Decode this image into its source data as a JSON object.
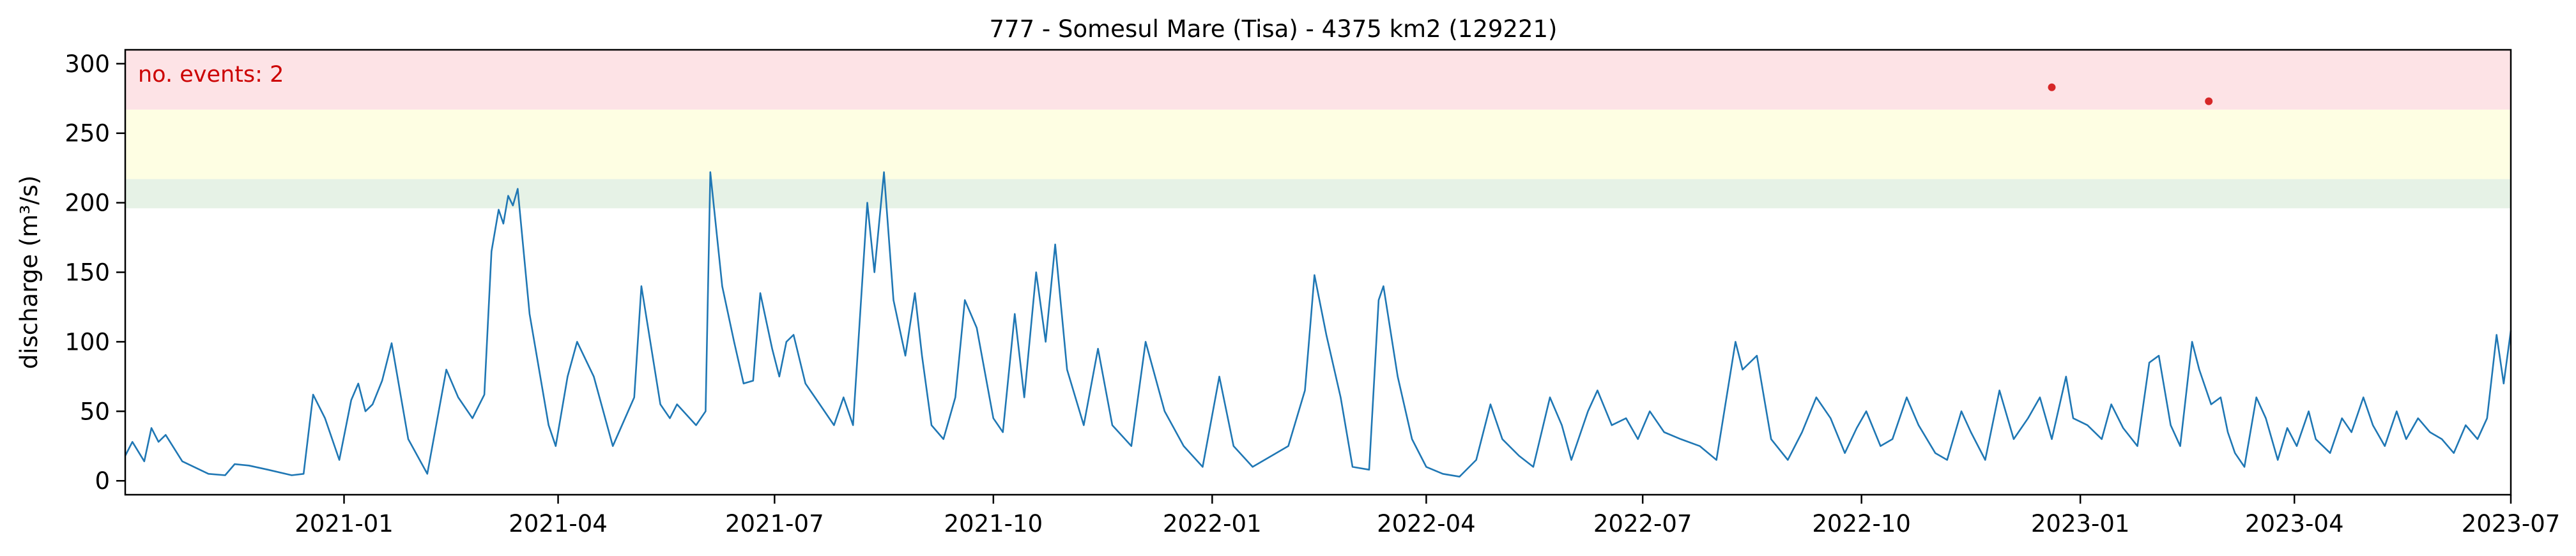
{
  "chart_data": {
    "type": "line",
    "title": "777 - Somesul Mare (Tisa) - 4375 km2 (129221)",
    "xlabel": "",
    "ylabel": "discharge (m³/s)",
    "x_range": [
      "2020-10-01",
      "2023-07-01"
    ],
    "ylim": [
      -10,
      310
    ],
    "y_ticks": [
      0,
      50,
      100,
      150,
      200,
      250,
      300
    ],
    "x_ticks": [
      "2021-01",
      "2021-04",
      "2021-07",
      "2021-10",
      "2022-01",
      "2022-04",
      "2022-07",
      "2022-10",
      "2023-01",
      "2023-04",
      "2023-07"
    ],
    "grid": false,
    "threshold_bands": [
      {
        "from": 196,
        "to": 217,
        "color": "#e6f2e6"
      },
      {
        "from": 217,
        "to": 267,
        "color": "#fefee3"
      },
      {
        "from": 267,
        "to": 310,
        "color": "#fde3e6"
      }
    ],
    "annotation": {
      "text": "no. events: 2",
      "color": "#cc0000"
    },
    "series": [
      {
        "color": "#1f77b4",
        "points": [
          [
            "2020-10-01",
            18
          ],
          [
            "2020-10-04",
            28
          ],
          [
            "2020-10-09",
            14
          ],
          [
            "2020-10-12",
            38
          ],
          [
            "2020-10-15",
            28
          ],
          [
            "2020-10-18",
            33
          ],
          [
            "2020-10-25",
            14
          ],
          [
            "2020-11-05",
            5
          ],
          [
            "2020-11-12",
            4
          ],
          [
            "2020-11-16",
            12
          ],
          [
            "2020-11-22",
            11
          ],
          [
            "2020-11-30",
            8
          ],
          [
            "2020-12-10",
            4
          ],
          [
            "2020-12-15",
            5
          ],
          [
            "2020-12-19",
            62
          ],
          [
            "2020-12-24",
            45
          ],
          [
            "2020-12-30",
            15
          ],
          [
            "2021-01-04",
            58
          ],
          [
            "2021-01-07",
            70
          ],
          [
            "2021-01-10",
            50
          ],
          [
            "2021-01-13",
            55
          ],
          [
            "2021-01-17",
            72
          ],
          [
            "2021-01-21",
            99
          ],
          [
            "2021-01-28",
            30
          ],
          [
            "2021-02-05",
            5
          ],
          [
            "2021-02-13",
            80
          ],
          [
            "2021-02-18",
            60
          ],
          [
            "2021-02-24",
            45
          ],
          [
            "2021-03-01",
            62
          ],
          [
            "2021-03-04",
            165
          ],
          [
            "2021-03-07",
            195
          ],
          [
            "2021-03-09",
            185
          ],
          [
            "2021-03-11",
            205
          ],
          [
            "2021-03-13",
            198
          ],
          [
            "2021-03-15",
            210
          ],
          [
            "2021-03-20",
            120
          ],
          [
            "2021-03-28",
            40
          ],
          [
            "2021-03-31",
            25
          ],
          [
            "2021-04-05",
            75
          ],
          [
            "2021-04-09",
            100
          ],
          [
            "2021-04-16",
            75
          ],
          [
            "2021-04-24",
            25
          ],
          [
            "2021-05-03",
            60
          ],
          [
            "2021-05-06",
            140
          ],
          [
            "2021-05-14",
            55
          ],
          [
            "2021-05-18",
            45
          ],
          [
            "2021-05-21",
            55
          ],
          [
            "2021-05-29",
            40
          ],
          [
            "2021-06-02",
            50
          ],
          [
            "2021-06-04",
            222
          ],
          [
            "2021-06-09",
            140
          ],
          [
            "2021-06-14",
            100
          ],
          [
            "2021-06-18",
            70
          ],
          [
            "2021-06-22",
            72
          ],
          [
            "2021-06-25",
            135
          ],
          [
            "2021-06-30",
            95
          ],
          [
            "2021-07-03",
            75
          ],
          [
            "2021-07-06",
            100
          ],
          [
            "2021-07-09",
            105
          ],
          [
            "2021-07-14",
            70
          ],
          [
            "2021-07-20",
            55
          ],
          [
            "2021-07-26",
            40
          ],
          [
            "2021-07-30",
            60
          ],
          [
            "2021-08-03",
            40
          ],
          [
            "2021-08-09",
            200
          ],
          [
            "2021-08-12",
            150
          ],
          [
            "2021-08-16",
            222
          ],
          [
            "2021-08-20",
            130
          ],
          [
            "2021-08-25",
            90
          ],
          [
            "2021-08-29",
            135
          ],
          [
            "2021-09-01",
            90
          ],
          [
            "2021-09-05",
            40
          ],
          [
            "2021-09-10",
            30
          ],
          [
            "2021-09-15",
            60
          ],
          [
            "2021-09-19",
            130
          ],
          [
            "2021-09-24",
            110
          ],
          [
            "2021-10-01",
            45
          ],
          [
            "2021-10-05",
            35
          ],
          [
            "2021-10-10",
            120
          ],
          [
            "2021-10-14",
            60
          ],
          [
            "2021-10-19",
            150
          ],
          [
            "2021-10-23",
            100
          ],
          [
            "2021-10-27",
            170
          ],
          [
            "2021-11-01",
            80
          ],
          [
            "2021-11-08",
            40
          ],
          [
            "2021-11-14",
            95
          ],
          [
            "2021-11-20",
            40
          ],
          [
            "2021-11-28",
            25
          ],
          [
            "2021-12-04",
            100
          ],
          [
            "2021-12-12",
            50
          ],
          [
            "2021-12-20",
            25
          ],
          [
            "2021-12-28",
            10
          ],
          [
            "2022-01-04",
            75
          ],
          [
            "2022-01-10",
            25
          ],
          [
            "2022-01-18",
            10
          ],
          [
            "2022-01-26",
            18
          ],
          [
            "2022-02-02",
            25
          ],
          [
            "2022-02-09",
            65
          ],
          [
            "2022-02-13",
            148
          ],
          [
            "2022-02-18",
            105
          ],
          [
            "2022-02-24",
            60
          ],
          [
            "2022-03-01",
            10
          ],
          [
            "2022-03-08",
            8
          ],
          [
            "2022-03-12",
            130
          ],
          [
            "2022-03-14",
            140
          ],
          [
            "2022-03-20",
            75
          ],
          [
            "2022-03-26",
            30
          ],
          [
            "2022-04-01",
            10
          ],
          [
            "2022-04-08",
            5
          ],
          [
            "2022-04-15",
            3
          ],
          [
            "2022-04-22",
            15
          ],
          [
            "2022-04-28",
            55
          ],
          [
            "2022-05-03",
            30
          ],
          [
            "2022-05-10",
            18
          ],
          [
            "2022-05-16",
            10
          ],
          [
            "2022-05-23",
            60
          ],
          [
            "2022-05-28",
            40
          ],
          [
            "2022-06-01",
            15
          ],
          [
            "2022-06-08",
            50
          ],
          [
            "2022-06-12",
            65
          ],
          [
            "2022-06-18",
            40
          ],
          [
            "2022-06-24",
            45
          ],
          [
            "2022-06-29",
            30
          ],
          [
            "2022-07-04",
            50
          ],
          [
            "2022-07-10",
            35
          ],
          [
            "2022-07-17",
            30
          ],
          [
            "2022-07-25",
            25
          ],
          [
            "2022-08-01",
            15
          ],
          [
            "2022-08-09",
            100
          ],
          [
            "2022-08-12",
            80
          ],
          [
            "2022-08-18",
            90
          ],
          [
            "2022-08-24",
            30
          ],
          [
            "2022-08-31",
            15
          ],
          [
            "2022-09-06",
            35
          ],
          [
            "2022-09-12",
            60
          ],
          [
            "2022-09-18",
            45
          ],
          [
            "2022-09-24",
            20
          ],
          [
            "2022-09-29",
            38
          ],
          [
            "2022-10-03",
            50
          ],
          [
            "2022-10-09",
            25
          ],
          [
            "2022-10-14",
            30
          ],
          [
            "2022-10-20",
            60
          ],
          [
            "2022-10-25",
            40
          ],
          [
            "2022-11-01",
            20
          ],
          [
            "2022-11-06",
            15
          ],
          [
            "2022-11-12",
            50
          ],
          [
            "2022-11-16",
            35
          ],
          [
            "2022-11-22",
            15
          ],
          [
            "2022-11-28",
            65
          ],
          [
            "2022-12-04",
            30
          ],
          [
            "2022-12-10",
            45
          ],
          [
            "2022-12-15",
            60
          ],
          [
            "2022-12-20",
            30
          ],
          [
            "2022-12-26",
            75
          ],
          [
            "2022-12-29",
            45
          ],
          [
            "2023-01-04",
            40
          ],
          [
            "2023-01-10",
            30
          ],
          [
            "2023-01-14",
            55
          ],
          [
            "2023-01-19",
            38
          ],
          [
            "2023-01-25",
            25
          ],
          [
            "2023-01-30",
            85
          ],
          [
            "2023-02-03",
            90
          ],
          [
            "2023-02-08",
            40
          ],
          [
            "2023-02-12",
            25
          ],
          [
            "2023-02-17",
            100
          ],
          [
            "2023-02-20",
            80
          ],
          [
            "2023-02-25",
            55
          ],
          [
            "2023-03-01",
            60
          ],
          [
            "2023-03-04",
            35
          ],
          [
            "2023-03-07",
            20
          ],
          [
            "2023-03-11",
            10
          ],
          [
            "2023-03-16",
            60
          ],
          [
            "2023-03-20",
            45
          ],
          [
            "2023-03-25",
            15
          ],
          [
            "2023-03-29",
            38
          ],
          [
            "2023-04-02",
            25
          ],
          [
            "2023-04-07",
            50
          ],
          [
            "2023-04-10",
            30
          ],
          [
            "2023-04-16",
            20
          ],
          [
            "2023-04-21",
            45
          ],
          [
            "2023-04-25",
            35
          ],
          [
            "2023-04-30",
            60
          ],
          [
            "2023-05-04",
            40
          ],
          [
            "2023-05-09",
            25
          ],
          [
            "2023-05-14",
            50
          ],
          [
            "2023-05-18",
            30
          ],
          [
            "2023-05-23",
            45
          ],
          [
            "2023-05-28",
            35
          ],
          [
            "2023-06-02",
            30
          ],
          [
            "2023-06-07",
            20
          ],
          [
            "2023-06-12",
            40
          ],
          [
            "2023-06-17",
            30
          ],
          [
            "2023-06-21",
            45
          ],
          [
            "2023-06-25",
            105
          ],
          [
            "2023-06-28",
            70
          ],
          [
            "2023-07-01",
            108
          ]
        ]
      }
    ],
    "events": [
      {
        "x": "2022-12-20",
        "y": 283,
        "color": "#d62728"
      },
      {
        "x": "2023-02-24",
        "y": 273,
        "color": "#d62728"
      }
    ]
  }
}
